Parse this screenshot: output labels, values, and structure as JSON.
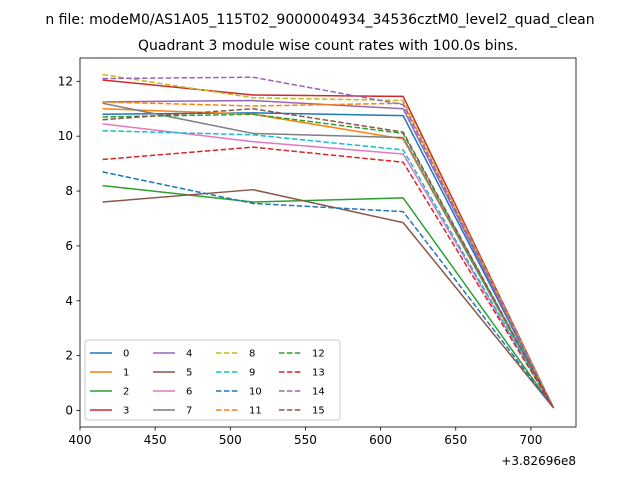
{
  "chart_data": {
    "type": "line",
    "suptitle": "n file: modeM0/AS1A05_115T02_9000004934_34536cztM0_level2_quad_clean",
    "title": "Quadrant 3 module wise count rates with 100.0s bins.",
    "xlabel": "",
    "ylabel": "",
    "x_offset_label": "+3.82696e8",
    "x": [
      415,
      515,
      615,
      715
    ],
    "xlim": [
      400,
      730
    ],
    "ylim": [
      -0.6,
      12.85
    ],
    "xticks": [
      400,
      450,
      500,
      550,
      600,
      650,
      700
    ],
    "yticks": [
      0,
      2,
      4,
      6,
      8,
      10,
      12
    ],
    "legend_location": "lower-left",
    "legend_columns": 4,
    "series": [
      {
        "name": "0",
        "color": "#1f77b4",
        "dash": false,
        "values": [
          10.8,
          10.85,
          10.75,
          0.1
        ]
      },
      {
        "name": "1",
        "color": "#ff7f0e",
        "dash": false,
        "values": [
          11.0,
          10.8,
          9.9,
          0.1
        ]
      },
      {
        "name": "2",
        "color": "#2ca02c",
        "dash": false,
        "values": [
          8.2,
          7.6,
          7.75,
          0.1
        ]
      },
      {
        "name": "3",
        "color": "#d62728",
        "dash": false,
        "values": [
          12.05,
          11.5,
          11.45,
          0.1
        ]
      },
      {
        "name": "4",
        "color": "#9467bd",
        "dash": false,
        "values": [
          11.25,
          11.3,
          11.0,
          0.1
        ]
      },
      {
        "name": "5",
        "color": "#8c564b",
        "dash": false,
        "values": [
          7.6,
          8.05,
          6.85,
          0.1
        ]
      },
      {
        "name": "6",
        "color": "#e377c2",
        "dash": false,
        "values": [
          10.45,
          9.8,
          9.35,
          0.1
        ]
      },
      {
        "name": "7",
        "color": "#7f7f7f",
        "dash": false,
        "values": [
          11.2,
          10.1,
          9.95,
          0.1
        ]
      },
      {
        "name": "8",
        "color": "#bcbd22",
        "dash": true,
        "values": [
          12.25,
          11.4,
          11.3,
          0.1
        ]
      },
      {
        "name": "9",
        "color": "#17becf",
        "dash": true,
        "values": [
          10.2,
          10.05,
          9.5,
          0.1
        ]
      },
      {
        "name": "10",
        "color": "#1f77b4",
        "dash": true,
        "values": [
          8.7,
          7.55,
          7.25,
          0.1
        ]
      },
      {
        "name": "11",
        "color": "#ff7f0e",
        "dash": true,
        "values": [
          11.25,
          11.1,
          11.2,
          0.1
        ]
      },
      {
        "name": "12",
        "color": "#2ca02c",
        "dash": true,
        "values": [
          10.7,
          10.8,
          10.1,
          0.1
        ]
      },
      {
        "name": "13",
        "color": "#d62728",
        "dash": true,
        "values": [
          9.15,
          9.6,
          9.05,
          0.1
        ]
      },
      {
        "name": "14",
        "color": "#9467bd",
        "dash": true,
        "values": [
          12.1,
          12.15,
          11.15,
          0.1
        ]
      },
      {
        "name": "15",
        "color": "#8c564b",
        "dash": true,
        "values": [
          10.6,
          11.0,
          10.15,
          0.1
        ]
      }
    ]
  }
}
